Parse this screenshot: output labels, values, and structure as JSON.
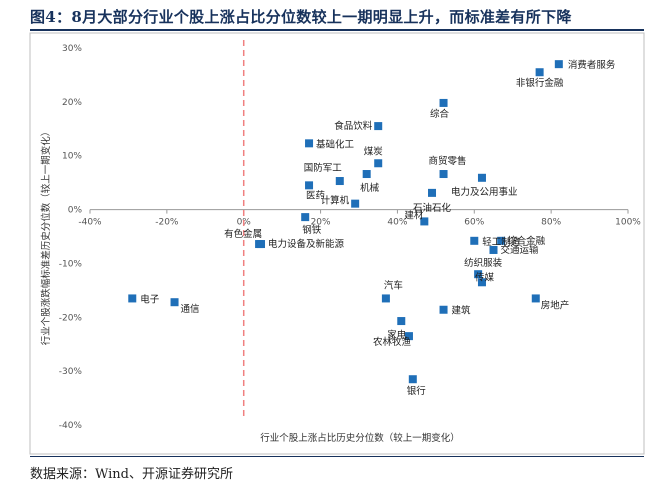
{
  "title": "图4：8月大部分行业个股上涨占比分位数较上一期明显上升，而标准差有所下降",
  "source": "数据来源：Wind、开源证券研究所",
  "colors": {
    "marker": "#1f6fb8",
    "zero_line": "#f08080",
    "title": "#17325c",
    "border": "#bfbfbf"
  },
  "chart_data": {
    "type": "scatter",
    "title": "",
    "xlabel": "行业个股上涨占比历史分位数（较上一期变化）",
    "ylabel": "行业个股涨跌幅标准差历史分位数（较上一期变化）",
    "xlim": [
      -40,
      100
    ],
    "ylim": [
      -40,
      30
    ],
    "x_ticks": [
      -40,
      -20,
      0,
      20,
      40,
      60,
      80,
      100
    ],
    "y_ticks": [
      -40,
      -30,
      -20,
      -10,
      0,
      10,
      20,
      30
    ],
    "x_tick_labels": [
      "-40%",
      "-20%",
      "0%",
      "20%",
      "40%",
      "60%",
      "80%",
      "100%"
    ],
    "y_tick_labels": [
      "-40%",
      "-30%",
      "-20%",
      "-10%",
      "0%",
      "10%",
      "20%",
      "30%"
    ],
    "reference_line": {
      "axis": "x",
      "value": 0,
      "style": "dashed"
    },
    "grid": false,
    "legend": "none",
    "points": [
      {
        "label": "消费者服务",
        "x": 82,
        "y": 27
      },
      {
        "label": "非银行金融",
        "x": 77,
        "y": 25.5
      },
      {
        "label": "综合",
        "x": 52,
        "y": 19.8
      },
      {
        "label": "食品饮料",
        "x": 35,
        "y": 15.5
      },
      {
        "label": "基础化工",
        "x": 17,
        "y": 12.3
      },
      {
        "label": "煤炭",
        "x": 35,
        "y": 8.6
      },
      {
        "label": "国防军工",
        "x": 25,
        "y": 5.3
      },
      {
        "label": "机械",
        "x": 32,
        "y": 6.6
      },
      {
        "label": "商贸零售",
        "x": 52,
        "y": 6.6
      },
      {
        "label": "电力及公用事业",
        "x": 62,
        "y": 5.9
      },
      {
        "label": "医药",
        "x": 17,
        "y": 4.5
      },
      {
        "label": "计算机",
        "x": 29,
        "y": 1.1
      },
      {
        "label": "石油石化",
        "x": 49,
        "y": 3.1
      },
      {
        "label": "建材",
        "x": 47,
        "y": -2.2
      },
      {
        "label": "钢铁",
        "x": 16,
        "y": -1.4
      },
      {
        "label": "有色金属",
        "x": 4,
        "y": -6.4
      },
      {
        "label": "电力设备及新能源",
        "x": 4.5,
        "y": -6.4
      },
      {
        "label": "轻工制造",
        "x": 60,
        "y": -5.8
      },
      {
        "label": "综合金融",
        "x": 67,
        "y": -5.8
      },
      {
        "label": "交通运输",
        "x": 65,
        "y": -7.5
      },
      {
        "label": "纺织服装",
        "x": 61,
        "y": -12
      },
      {
        "label": "传媒",
        "x": 62,
        "y": -13.5
      },
      {
        "label": "电子",
        "x": -29,
        "y": -16.5
      },
      {
        "label": "通信",
        "x": -18,
        "y": -17.2
      },
      {
        "label": "汽车",
        "x": 37,
        "y": -16.5
      },
      {
        "label": "建筑",
        "x": 52,
        "y": -18.6
      },
      {
        "label": "房地产",
        "x": 76,
        "y": -16.5
      },
      {
        "label": "家电",
        "x": 41,
        "y": -20.7
      },
      {
        "label": "农林牧渔",
        "x": 43,
        "y": -23.5
      },
      {
        "label": "银行",
        "x": 44,
        "y": -31.5
      }
    ]
  }
}
